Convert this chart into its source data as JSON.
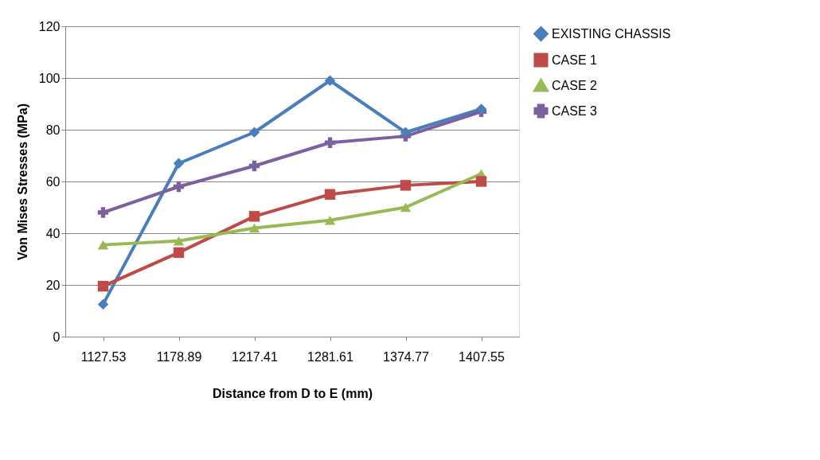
{
  "chart_data": {
    "type": "line",
    "xlabel": "Distance from D to E (mm)",
    "ylabel": "Von Mises Stresses (MPa)",
    "categories": [
      "1127.53",
      "1178.89",
      "1217.41",
      "1281.61",
      "1374.77",
      "1407.55"
    ],
    "ylim": [
      0,
      120
    ],
    "yticks": [
      0,
      20,
      40,
      60,
      80,
      100,
      120
    ],
    "grid": "y",
    "legend": "right",
    "series": [
      {
        "name": "EXISTING CHASSIS",
        "color": "#4a7ebb",
        "marker": "diamond",
        "values": [
          12.5,
          67,
          79,
          99,
          79,
          88
        ]
      },
      {
        "name": "CASE 1",
        "color": "#be4b48",
        "marker": "square",
        "values": [
          19.5,
          32.5,
          46.5,
          55,
          58.5,
          60
        ]
      },
      {
        "name": "CASE 2",
        "color": "#98b954",
        "marker": "triangle",
        "values": [
          35.5,
          37,
          42,
          45,
          50,
          63
        ]
      },
      {
        "name": "CASE 3",
        "color": "#7d60a0",
        "marker": "cross",
        "values": [
          48,
          58,
          66,
          75,
          77.5,
          87
        ]
      }
    ]
  }
}
